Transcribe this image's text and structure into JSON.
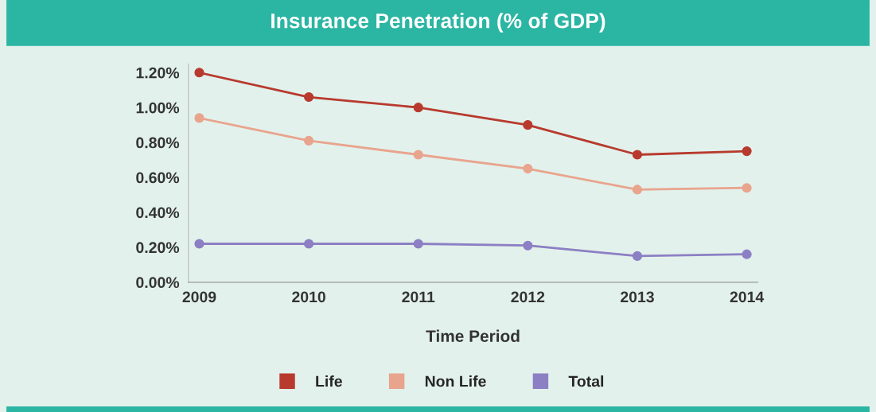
{
  "chart_data": {
    "type": "line",
    "title": "Insurance Penetration (% of GDP)",
    "xlabel": "Time Period",
    "categories": [
      "2009",
      "2010",
      "2011",
      "2012",
      "2013",
      "2014"
    ],
    "series": [
      {
        "name": "Life",
        "color": "#b83a2e",
        "values": [
          1.2,
          1.06,
          1.0,
          0.9,
          0.73,
          0.75
        ]
      },
      {
        "name": "Non Life",
        "color": "#e9a48e",
        "values": [
          0.94,
          0.81,
          0.73,
          0.65,
          0.53,
          0.54
        ]
      },
      {
        "name": "Total",
        "color": "#8c7fc4",
        "values": [
          0.22,
          0.22,
          0.22,
          0.21,
          0.15,
          0.16
        ]
      }
    ],
    "ylim": [
      0,
      1.25
    ],
    "yticks": [
      {
        "value": 0,
        "label": "0.00%"
      },
      {
        "value": 0.2,
        "label": "0.20%"
      },
      {
        "value": 0.4,
        "label": "0.40%"
      },
      {
        "value": 0.6,
        "label": "0.60%"
      },
      {
        "value": 0.8,
        "label": "0.80%"
      },
      {
        "value": 1.0,
        "label": "1.00%"
      },
      {
        "value": 1.2,
        "label": "1.20%"
      }
    ],
    "grid": false,
    "legend": "bottom",
    "marker": "circle",
    "line_style": "solid"
  }
}
